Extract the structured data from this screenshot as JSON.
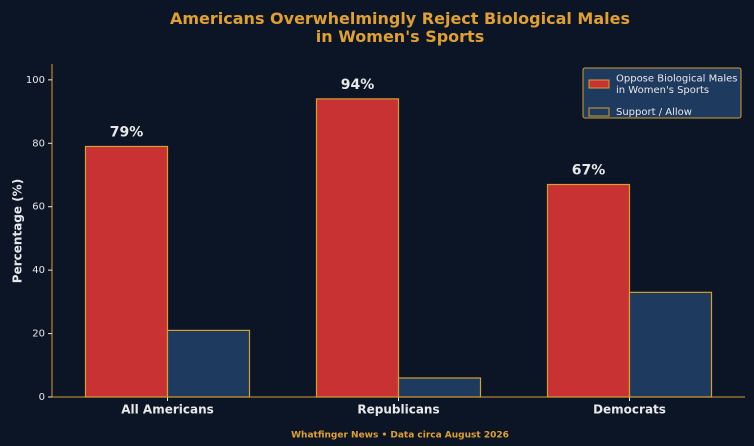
{
  "chart_data": {
    "type": "bar",
    "title": "Americans Overwhelmingly Reject Biological Males\nin Women's Sports",
    "y_label": "Percentage (%)",
    "footer": "Whatfinger News • Data circa August 2026",
    "categories": [
      "All Americans",
      "Republicans",
      "Democrats"
    ],
    "series": [
      {
        "name": "Oppose Biological Males\nin Women's Sports",
        "color": "#c83232",
        "values": [
          79,
          94,
          67
        ],
        "value_labels": [
          "79%",
          "94%",
          "67%"
        ]
      },
      {
        "name": "Support / Allow",
        "color": "#1e3a5f",
        "values": [
          21,
          6,
          33
        ]
      }
    ],
    "edge_color": "#d4a030",
    "ylim": [
      0,
      105
    ],
    "yticks": [
      0,
      20,
      40,
      60,
      80,
      100
    ],
    "grid": false,
    "legend": "upper right"
  }
}
